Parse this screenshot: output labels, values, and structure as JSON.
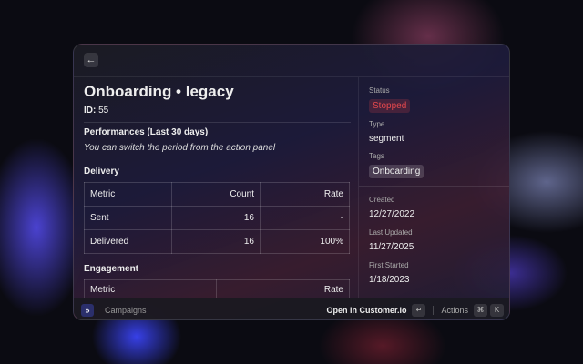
{
  "header": {
    "back_icon": "arrow-left"
  },
  "main": {
    "title": "Onboarding • legacy",
    "id_label": "ID:",
    "id_value": "55",
    "performance_title": "Performances (Last 30 days)",
    "performance_hint": "You can switch the period from the action panel",
    "delivery": {
      "title": "Delivery",
      "headers": [
        "Metric",
        "Count",
        "Rate"
      ],
      "rows": [
        [
          "Sent",
          "16",
          "-"
        ],
        [
          "Delivered",
          "16",
          "100%"
        ]
      ]
    },
    "engagement": {
      "title": "Engagement",
      "headers": [
        "Metric",
        "Rate"
      ]
    }
  },
  "sidebar": {
    "status_label": "Status",
    "status": "Stopped",
    "status_color": "#e5484d",
    "type_label": "Type",
    "type": "segment",
    "tags_label": "Tags",
    "tags": [
      "Onboarding"
    ],
    "created_label": "Created",
    "created": "12/27/2022",
    "updated_label": "Last Updated",
    "updated": "11/27/2025",
    "started_label": "First Started",
    "started": "1/18/2023"
  },
  "footer": {
    "app": "Campaigns",
    "primary_action": "Open in Customer.io",
    "primary_key": "↵",
    "actions": "Actions",
    "keys": [
      "⌘",
      "K"
    ]
  }
}
